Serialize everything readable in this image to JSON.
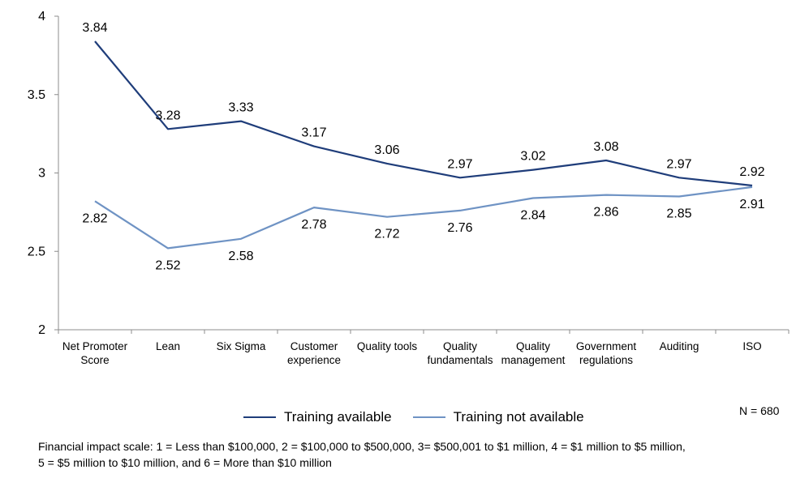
{
  "chart_data": {
    "type": "line",
    "categories": [
      [
        "Net Promoter",
        "Score"
      ],
      [
        "Lean"
      ],
      [
        "Six Sigma"
      ],
      [
        "Customer",
        "experience"
      ],
      [
        "Quality tools"
      ],
      [
        "Quality",
        "fundamentals"
      ],
      [
        "Quality",
        "management"
      ],
      [
        "Government",
        "regulations"
      ],
      [
        "Auditing"
      ],
      [
        "ISO"
      ]
    ],
    "series": [
      {
        "name": "Training available",
        "color": "#1f3d7a",
        "values": [
          3.84,
          3.28,
          3.33,
          3.17,
          3.06,
          2.97,
          3.02,
          3.08,
          2.97,
          2.92
        ],
        "labels": [
          "3.84",
          "3.28",
          "3.33",
          "3.17",
          "3.06",
          "2.97",
          "3.02",
          "3.08",
          "2.97",
          "2.92"
        ]
      },
      {
        "name": "Training not available",
        "color": "#6f93c4",
        "values": [
          2.82,
          2.52,
          2.58,
          2.78,
          2.72,
          2.76,
          2.84,
          2.86,
          2.85,
          2.91
        ],
        "labels": [
          "2.82",
          "2.52",
          "2.58",
          "2.78",
          "2.72",
          "2.76",
          "2.84",
          "2.86",
          "2.85",
          "2.91"
        ]
      }
    ],
    "ylim": [
      2,
      4
    ],
    "yticks": [
      2,
      2.5,
      3,
      3.5,
      4
    ],
    "ytick_labels": [
      "2",
      "2.5",
      "3",
      "3.5",
      "4"
    ],
    "xlabel": "",
    "ylabel": "",
    "grid": false,
    "legend_position": "bottom"
  },
  "legend": {
    "items": [
      {
        "label": "Training available",
        "color": "#1f3d7a"
      },
      {
        "label": "Training not available",
        "color": "#6f93c4"
      }
    ]
  },
  "sample_size": "N = 680",
  "footnote": {
    "line1": "Financial impact scale: 1 = Less than $100,000, 2 = $100,000  to $500,000, 3= $500,001 to $1 million, 4 = $1 million to $5 million,",
    "line2": "5 = $5 million to $10 million, and 6 = More than $10 million"
  }
}
